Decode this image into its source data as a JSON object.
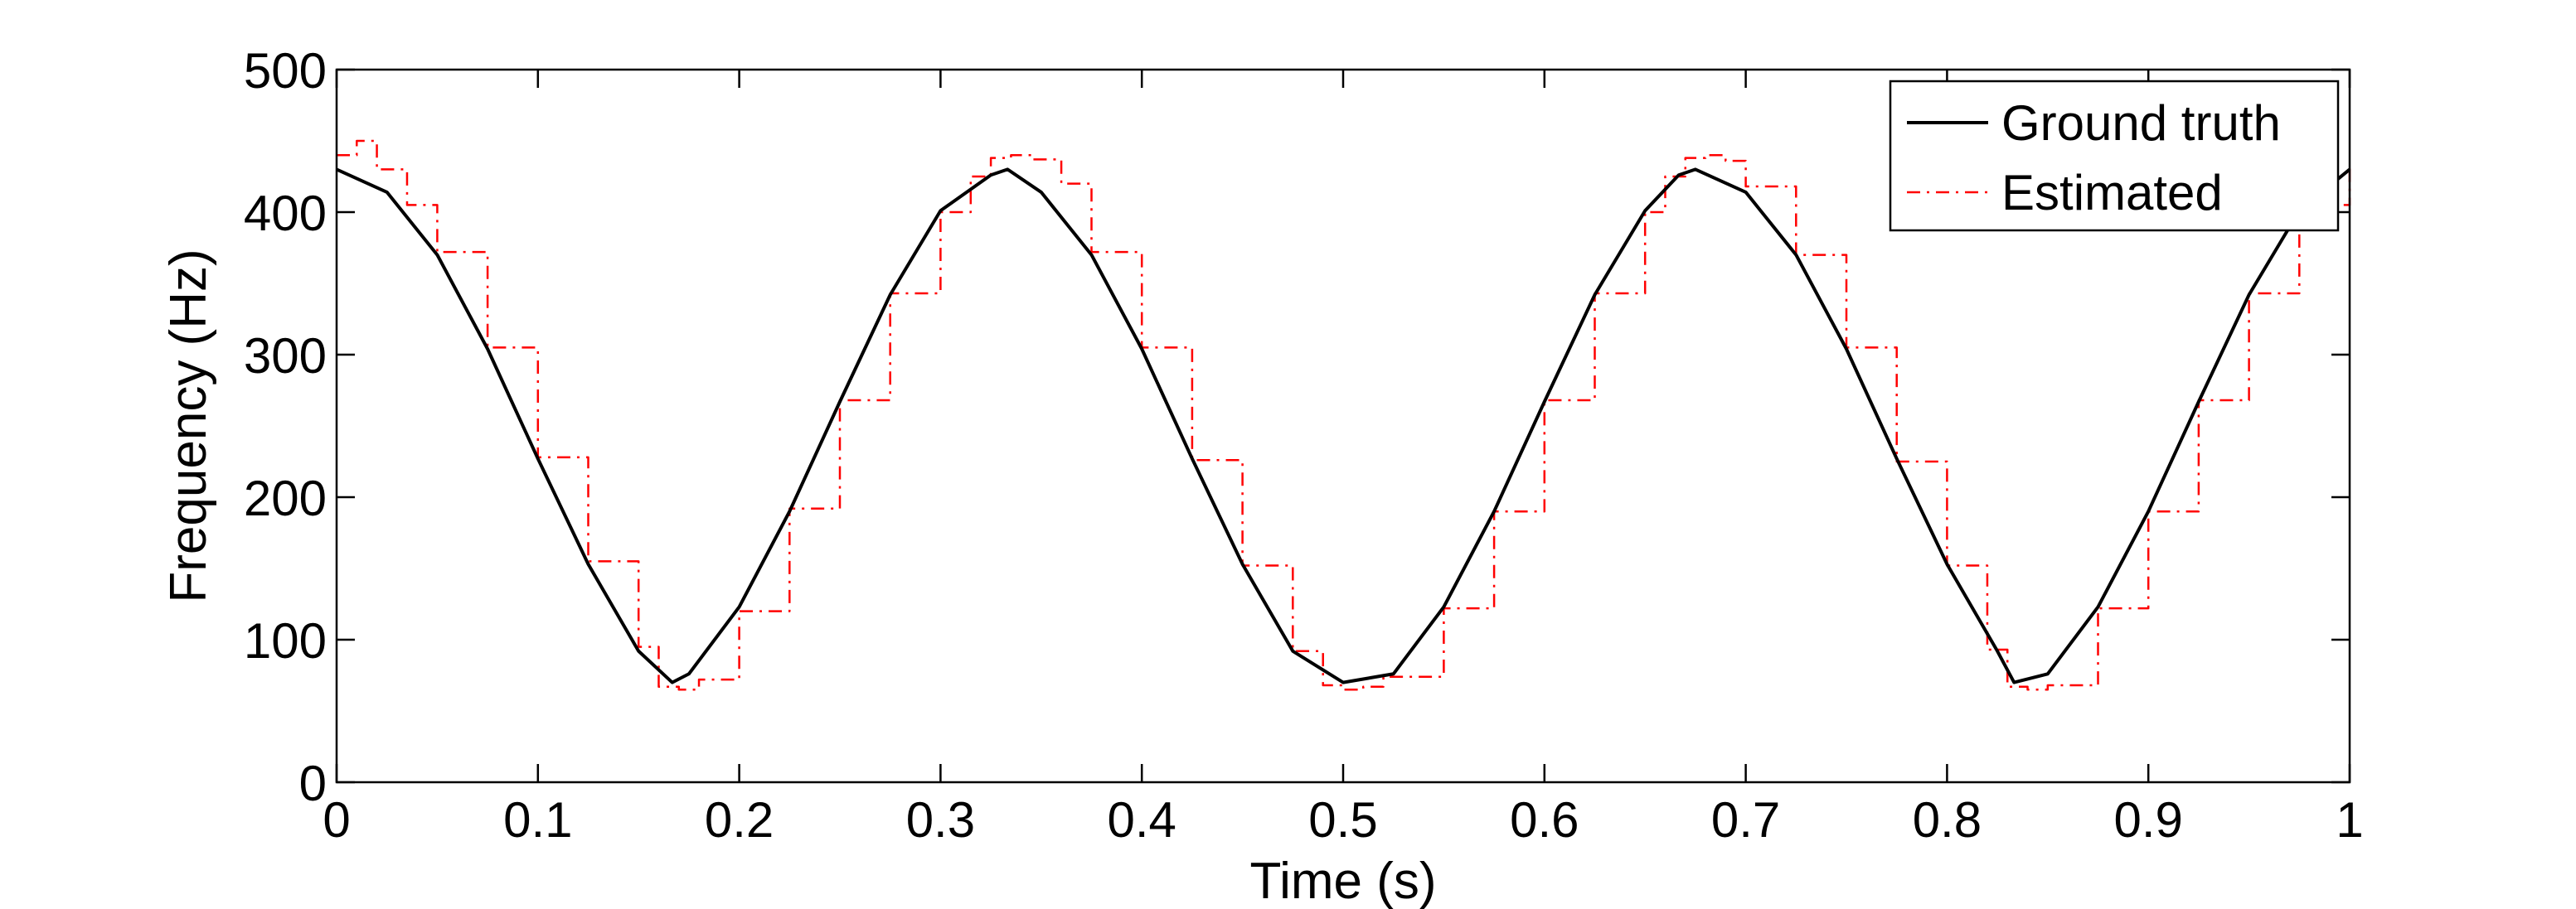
{
  "chart_data": {
    "type": "line",
    "title": "",
    "xlabel": "Time (s)",
    "ylabel": "Frequency (Hz)",
    "xlim": [
      0,
      1
    ],
    "ylim": [
      0,
      500
    ],
    "xticks": [
      "0",
      "0.1",
      "0.2",
      "0.3",
      "0.4",
      "0.5",
      "0.6",
      "0.7",
      "0.8",
      "0.9",
      "1"
    ],
    "yticks": [
      "0",
      "100",
      "200",
      "300",
      "400",
      "500"
    ],
    "grid": false,
    "legend_position": "top-right",
    "series": [
      {
        "name": "Ground truth",
        "color": "#000000",
        "style": "solid",
        "x": [
          0,
          0.025,
          0.05,
          0.075,
          0.1,
          0.125,
          0.15,
          0.1667,
          0.175,
          0.2,
          0.225,
          0.25,
          0.275,
          0.3,
          0.325,
          0.3333,
          0.35,
          0.375,
          0.4,
          0.425,
          0.45,
          0.475,
          0.5,
          0.525,
          0.55,
          0.575,
          0.6,
          0.625,
          0.65,
          0.6667,
          0.675,
          0.7,
          0.725,
          0.75,
          0.775,
          0.8,
          0.825,
          0.8333,
          0.85,
          0.875,
          0.9,
          0.925,
          0.95,
          0.975,
          1.0
        ],
        "y": [
          430,
          414,
          370,
          304,
          227,
          153,
          92,
          70,
          76,
          123,
          190,
          267,
          342,
          401,
          426,
          430,
          414,
          370,
          304,
          227,
          153,
          92,
          70,
          76,
          123,
          190,
          267,
          342,
          401,
          426,
          430,
          414,
          370,
          304,
          227,
          153,
          92,
          70,
          76,
          123,
          190,
          267,
          342,
          401,
          430
        ]
      },
      {
        "name": "Estimated",
        "color": "#ff0000",
        "style": "dash-dot",
        "x": [
          0,
          0.01,
          0.02,
          0.035,
          0.05,
          0.075,
          0.1,
          0.125,
          0.15,
          0.16,
          0.17,
          0.18,
          0.2,
          0.225,
          0.25,
          0.275,
          0.3,
          0.315,
          0.325,
          0.335,
          0.345,
          0.36,
          0.375,
          0.4,
          0.425,
          0.45,
          0.475,
          0.49,
          0.5,
          0.51,
          0.52,
          0.55,
          0.575,
          0.6,
          0.625,
          0.65,
          0.66,
          0.67,
          0.68,
          0.69,
          0.7,
          0.725,
          0.75,
          0.775,
          0.8,
          0.82,
          0.83,
          0.84,
          0.85,
          0.875,
          0.9,
          0.925,
          0.95,
          0.975,
          1.0
        ],
        "y": [
          440,
          450,
          430,
          405,
          372,
          305,
          228,
          155,
          95,
          67,
          65,
          72,
          120,
          192,
          268,
          343,
          400,
          425,
          438,
          440,
          437,
          420,
          372,
          305,
          226,
          152,
          92,
          68,
          65,
          67,
          74,
          122,
          190,
          268,
          343,
          400,
          425,
          438,
          440,
          436,
          418,
          370,
          305,
          225,
          152,
          93,
          67,
          65,
          68,
          122,
          190,
          268,
          343,
          405,
          432
        ]
      }
    ]
  }
}
